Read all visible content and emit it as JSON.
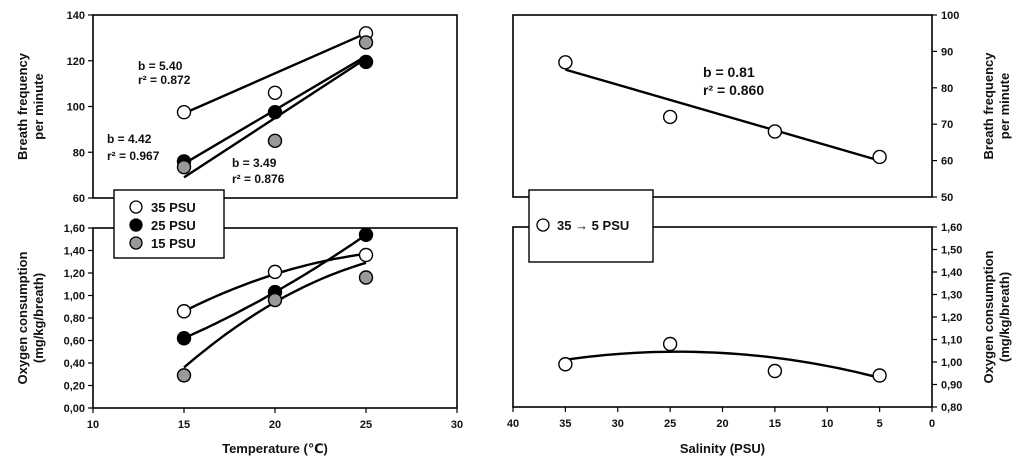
{
  "chart_data": [
    {
      "id": "tl",
      "type": "scatter",
      "xlim": [
        10,
        30
      ],
      "ylim": [
        60,
        140
      ],
      "y_ticks": [
        "60",
        "80",
        "100",
        "120",
        "140"
      ],
      "y_label": [
        "Breath frequency",
        "per minute"
      ],
      "series": [
        {
          "name": "35 PSU",
          "fill": "#ffffff",
          "x": [
            15,
            20,
            25
          ],
          "y": [
            97.5,
            106,
            132
          ],
          "fit": "linear",
          "fit_y": [
            97,
            132
          ]
        },
        {
          "name": "25 PSU",
          "fill": "#000000",
          "x": [
            15,
            20,
            25
          ],
          "y": [
            76,
            97.5,
            119.5
          ],
          "fit": "linear",
          "fit_y": [
            75,
            122
          ]
        },
        {
          "name": "15 PSU",
          "fill": "#999999",
          "x": [
            15,
            20,
            25
          ],
          "y": [
            73.5,
            85,
            128
          ],
          "fit": "linear",
          "fit_y": [
            69,
            121
          ]
        }
      ],
      "annotations": [
        {
          "b": "b = 5.40",
          "r2": "r² = 0.872"
        },
        {
          "b": "b = 4.42",
          "r2": "r² = 0.967"
        },
        {
          "b": "b = 3.49",
          "r2": "r² = 0.876"
        }
      ]
    },
    {
      "id": "bl",
      "type": "scatter",
      "xlim": [
        10,
        30
      ],
      "ylim": [
        0,
        1.6
      ],
      "x_ticks": [
        "10",
        "15",
        "20",
        "25",
        "30"
      ],
      "y_ticks": [
        "0,00",
        "0,20",
        "0,40",
        "0,60",
        "0,80",
        "1,00",
        "1,20",
        "1,40",
        "1,60"
      ],
      "x_label": "Temperature (℃)",
      "y_label": [
        "Oxygen consumption",
        "(mg/kg/breath)"
      ],
      "series": [
        {
          "name": "35 PSU",
          "fill": "#ffffff",
          "x": [
            15,
            20,
            25
          ],
          "y": [
            0.86,
            1.21,
            1.36
          ],
          "fit": "curve",
          "fit_y": [
            0.86,
            1.19,
            1.37
          ]
        },
        {
          "name": "25 PSU",
          "fill": "#000000",
          "x": [
            15,
            20,
            25
          ],
          "y": [
            0.62,
            1.03,
            1.54
          ],
          "fit": "curve",
          "fit_y": [
            0.62,
            1.03,
            1.54
          ]
        },
        {
          "name": "15 PSU",
          "fill": "#999999",
          "x": [
            15,
            20,
            25
          ],
          "y": [
            0.29,
            0.96,
            1.16
          ],
          "fit": "curve",
          "fit_y": [
            0.36,
            0.94,
            1.29
          ]
        }
      ],
      "legend": [
        {
          "label": "35 PSU",
          "fill": "#ffffff"
        },
        {
          "label": "25 PSU",
          "fill": "#000000"
        },
        {
          "label": "15 PSU",
          "fill": "#999999"
        }
      ]
    },
    {
      "id": "tr",
      "type": "scatter",
      "xlim": [
        40,
        0
      ],
      "ylim": [
        50,
        100
      ],
      "y_ticks": [
        "50",
        "60",
        "70",
        "80",
        "90",
        "100"
      ],
      "y_label": [
        "Breath frequency",
        "per minute"
      ],
      "series": [
        {
          "name": "35 → 5 PSU",
          "fill": "#ffffff",
          "x": [
            35,
            25,
            15,
            5
          ],
          "y": [
            87,
            72,
            68,
            61
          ],
          "fit": "linear",
          "fit_y": [
            85,
            60
          ]
        }
      ],
      "annotations": [
        {
          "b": "b = 0.81",
          "r2": "r² = 0.860"
        }
      ]
    },
    {
      "id": "br",
      "type": "scatter",
      "xlim": [
        40,
        0
      ],
      "ylim": [
        0.8,
        1.6
      ],
      "x_ticks": [
        "40",
        "35",
        "30",
        "25",
        "20",
        "15",
        "10",
        "5",
        "0"
      ],
      "y_ticks": [
        "0,80",
        "0,90",
        "1,00",
        "1,10",
        "1,20",
        "1,30",
        "1,40",
        "1,50",
        "1,60"
      ],
      "x_label": "Salinity (PSU)",
      "y_label": [
        "Oxygen consumption",
        "(mg/kg/breath)"
      ],
      "series": [
        {
          "name": "35 → 5 PSU",
          "fill": "#ffffff",
          "x": [
            35,
            25,
            15,
            5
          ],
          "y": [
            0.99,
            1.08,
            0.96,
            0.94
          ],
          "fit": "curve",
          "fit_y": [
            1.01,
            1.04,
            0.93
          ]
        }
      ],
      "legend": [
        {
          "label": "35  → 5 PSU",
          "fill": "#ffffff"
        }
      ]
    }
  ]
}
